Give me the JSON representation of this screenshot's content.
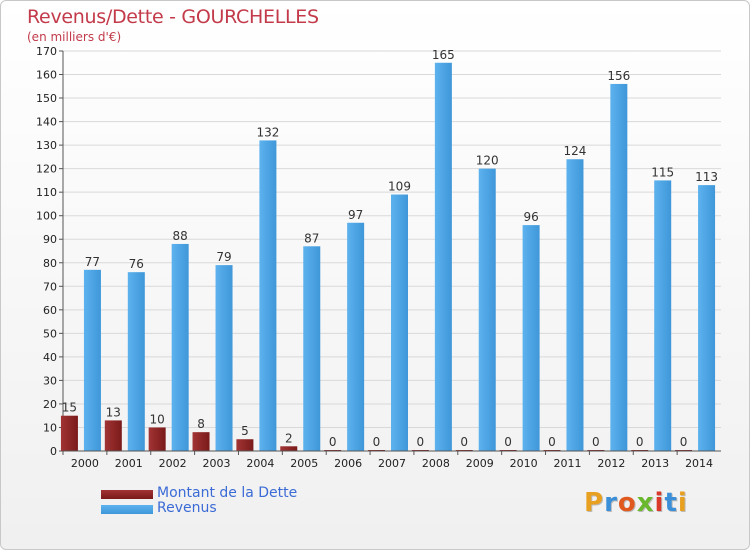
{
  "header": {
    "title": "Revenus/Dette - GOURCHELLES",
    "subtitle": "(en milliers d'€)"
  },
  "logo": {
    "text": "Proxiti"
  },
  "colors": {
    "dette": "#7a1a1a",
    "revenus": "#3f97d9",
    "grid": "#d9d9d9"
  },
  "chart_data": {
    "type": "bar",
    "title": "Revenus/Dette - GOURCHELLES",
    "subtitle": "(en milliers d'€)",
    "categories": [
      "2000",
      "2001",
      "2002",
      "2003",
      "2004",
      "2005",
      "2006",
      "2007",
      "2008",
      "2009",
      "2010",
      "2011",
      "2012",
      "2013",
      "2014"
    ],
    "series": [
      {
        "name": "Montant de la Dette",
        "values": [
          15,
          13,
          10,
          8,
          5,
          2,
          0,
          0,
          0,
          0,
          0,
          0,
          0,
          0,
          0
        ]
      },
      {
        "name": "Revenus",
        "values": [
          77,
          76,
          88,
          79,
          132,
          87,
          97,
          109,
          165,
          120,
          96,
          124,
          156,
          115,
          113
        ]
      }
    ],
    "ylim": [
      0,
      170
    ],
    "yticks": [
      0,
      10,
      20,
      30,
      40,
      50,
      60,
      70,
      80,
      90,
      100,
      110,
      120,
      130,
      140,
      150,
      160,
      170
    ],
    "grid": true,
    "legend": "bottom-left"
  }
}
